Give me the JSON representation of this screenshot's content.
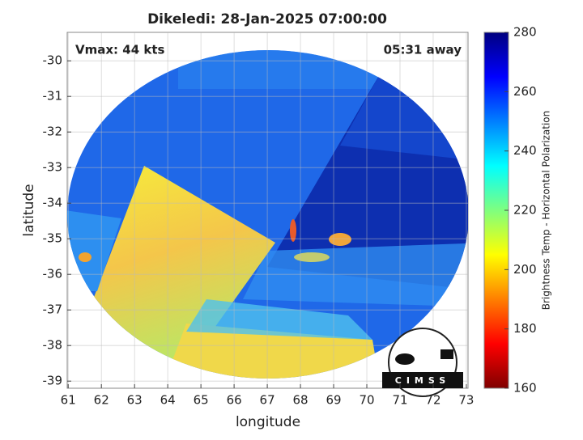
{
  "chart_data": {
    "type": "swath-image",
    "title": "Dikeledi: 28-Jan-2025 07:00:00",
    "xlabel": "longitude",
    "ylabel": "latitude",
    "annotations": [
      "Vmax: 44 kts",
      "05:31 away"
    ],
    "logo_text": "CIMSS",
    "xlim": [
      60.97,
      73.05
    ],
    "xticks": [
      61,
      62,
      63,
      64,
      65,
      66,
      67,
      68,
      69,
      70,
      71,
      72,
      73
    ],
    "ylim": [
      -39.2,
      -29.2
    ],
    "yticks": [
      -39,
      -38,
      -37,
      -36,
      -35,
      -34,
      -33,
      -32,
      -31,
      -30
    ],
    "grid": true,
    "colorbar": {
      "label": "Brightness Temp - Horizontal Polarization",
      "lim": [
        160,
        280
      ],
      "ticks": [
        160,
        180,
        200,
        220,
        240,
        260,
        280
      ],
      "colors": [
        "#7f0000",
        "#ff0000",
        "#ff7f00",
        "#ffff00",
        "#7fff7f",
        "#00ffff",
        "#007fff",
        "#0000ff",
        "#00007f"
      ]
    }
  }
}
